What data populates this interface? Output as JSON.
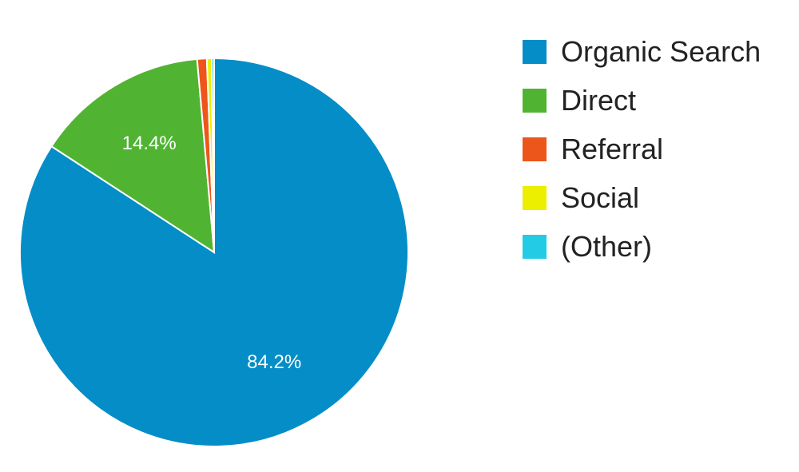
{
  "chart_data": {
    "type": "pie",
    "title": "",
    "slices": [
      {
        "name": "Organic Search",
        "value": 84.2,
        "label": "84.2%",
        "color": "#058dc7"
      },
      {
        "name": "Direct",
        "value": 14.4,
        "label": "14.4%",
        "color": "#50b432"
      },
      {
        "name": "Referral",
        "value": 0.8,
        "label": "",
        "color": "#ed561b"
      },
      {
        "name": "Social",
        "value": 0.4,
        "label": "",
        "color": "#edef00"
      },
      {
        "name": "(Other)",
        "value": 0.2,
        "label": "",
        "color": "#24cbe5"
      }
    ],
    "start": "top",
    "direction": "clockwise",
    "legend": "right",
    "grid": false
  }
}
